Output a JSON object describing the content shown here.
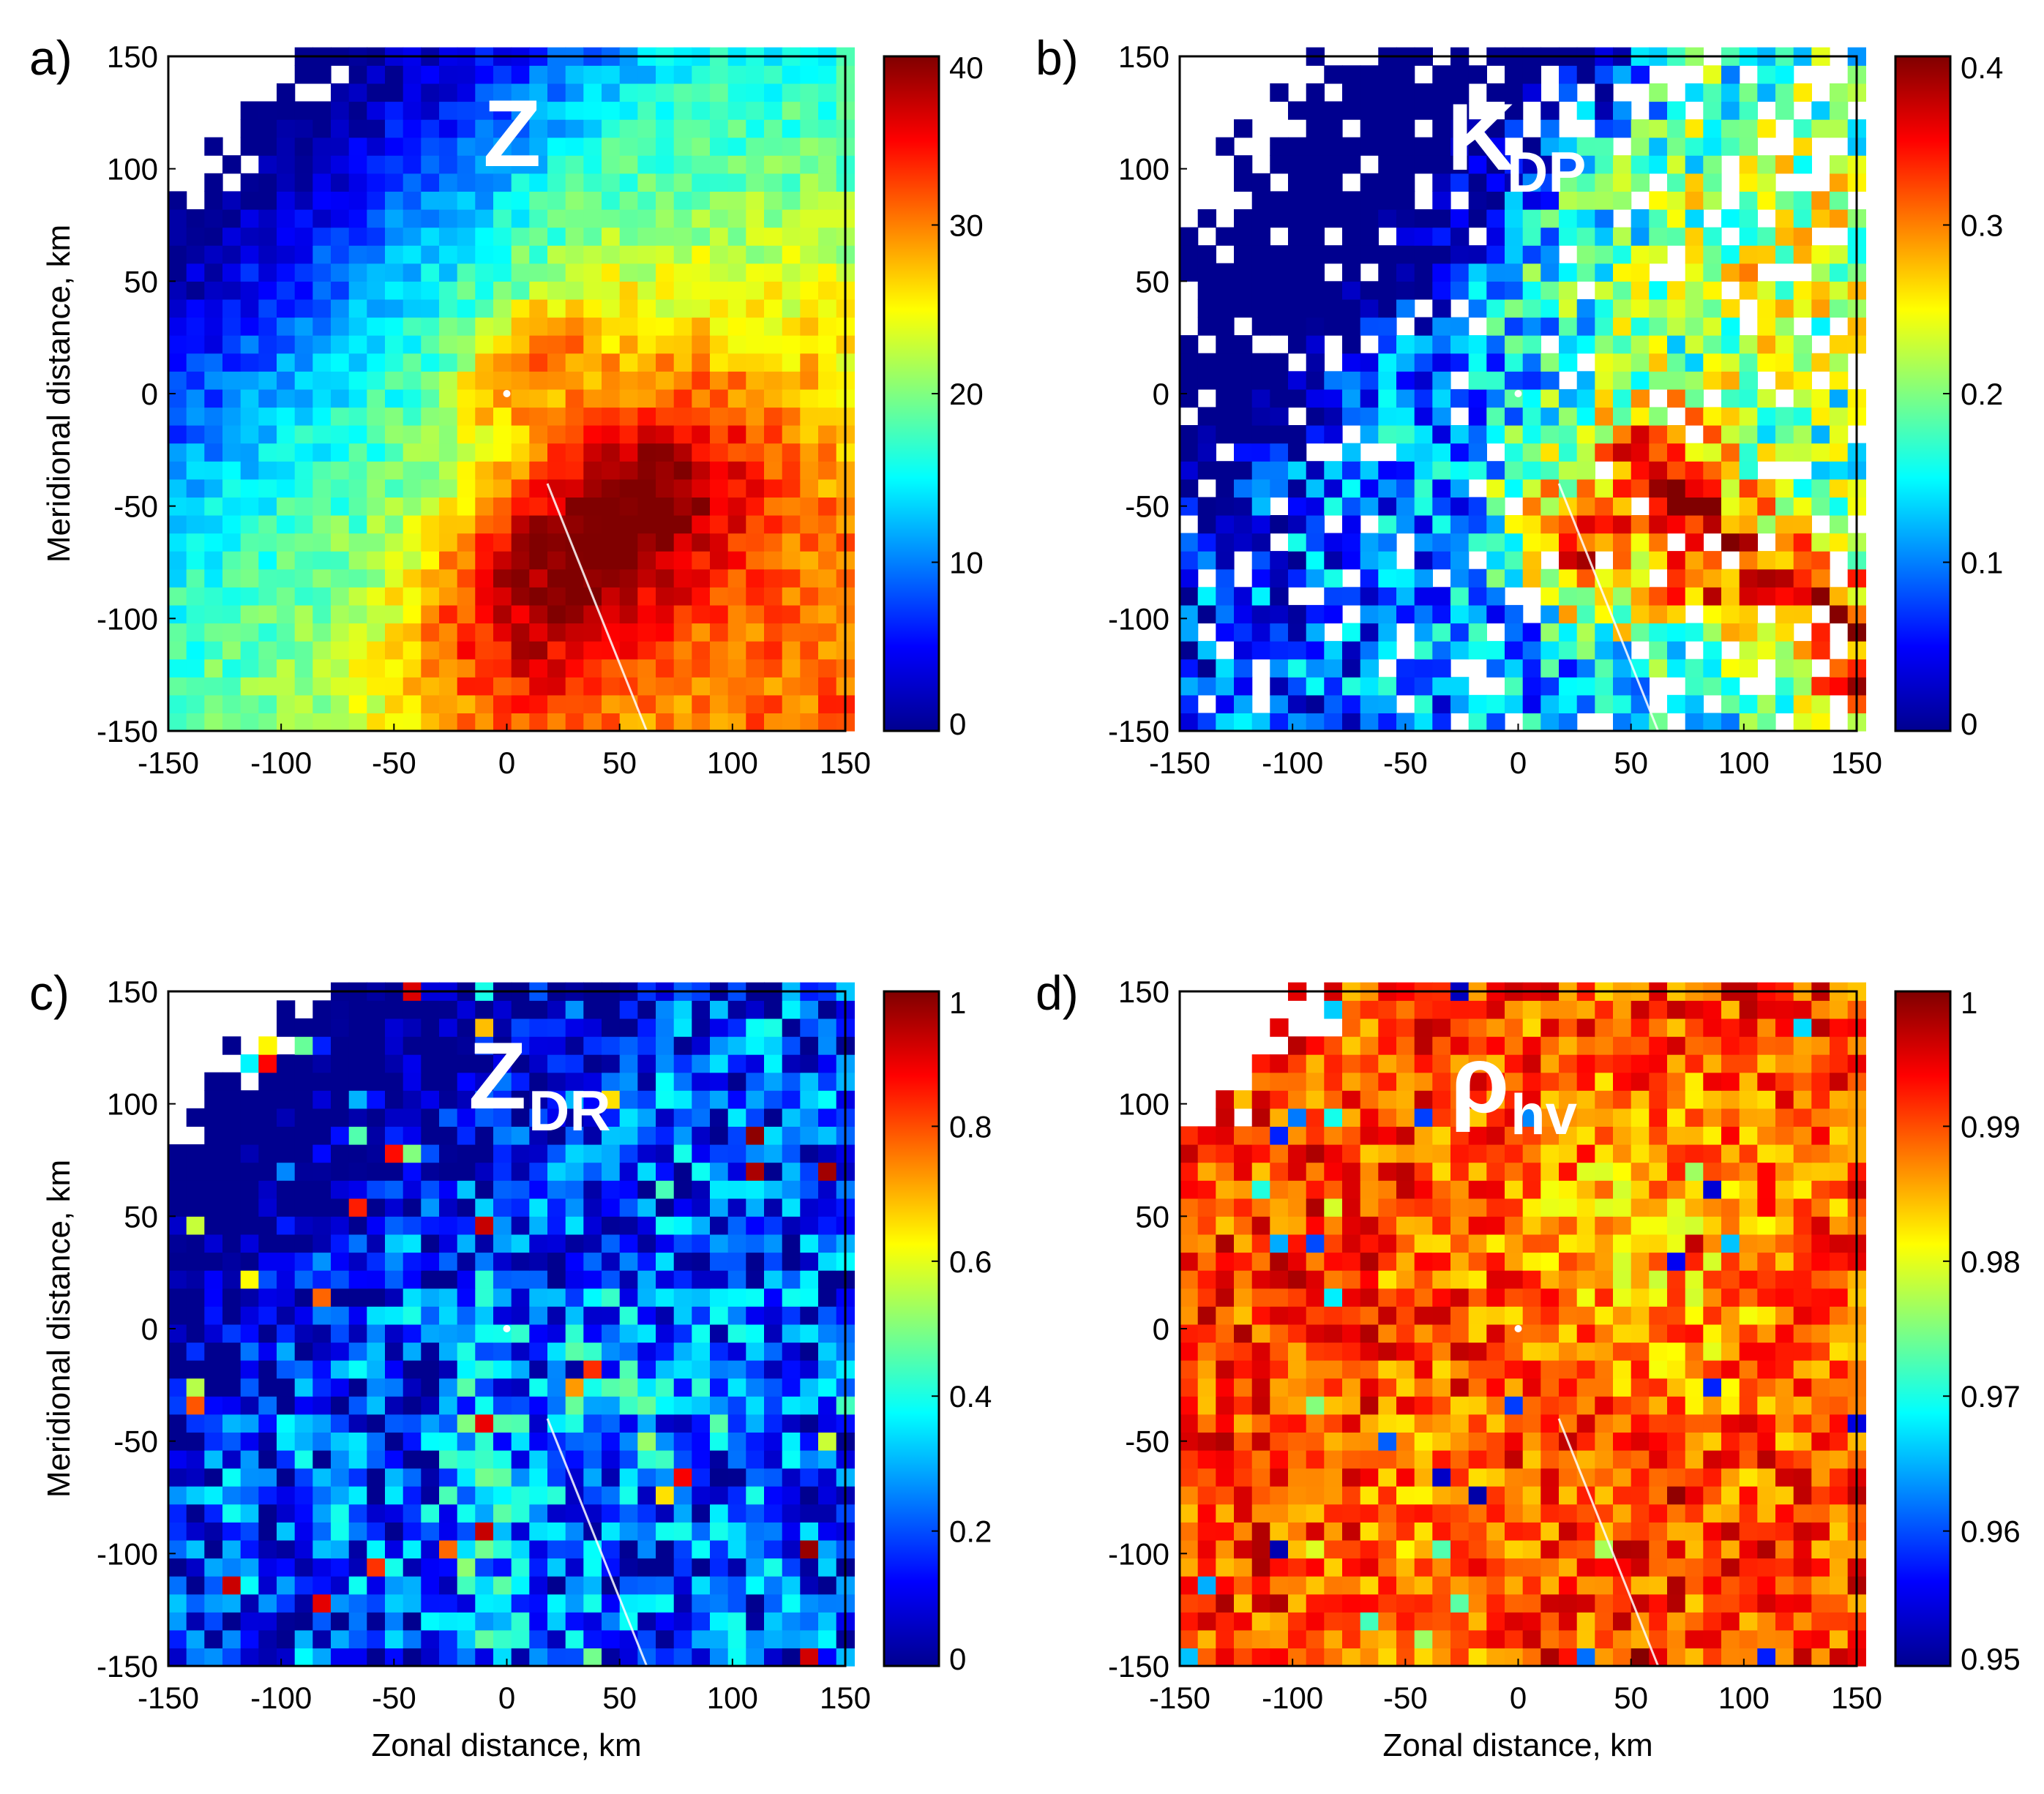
{
  "figure": {
    "colormap": [
      "#00008f",
      "#0000ff",
      "#0080ff",
      "#00ffff",
      "#80ff80",
      "#ffff00",
      "#ff8000",
      "#ff0000",
      "#800000"
    ],
    "axis_label_color": "#000000",
    "panel_title_color": "#ffffff"
  },
  "chart_data": [
    {
      "type": "heatmap",
      "panel_label": "a)",
      "variable": "Z",
      "subscript": "",
      "xlabel": "",
      "ylabel": "Meridional distance, km",
      "xlim": [
        -150,
        150
      ],
      "ylim": [
        -150,
        150
      ],
      "x_ticks": [
        "-150",
        "-100",
        "-50",
        "0",
        "50",
        "100",
        "150"
      ],
      "y_ticks": [
        "150",
        "100",
        "50",
        "0",
        "-50",
        "-100",
        "-150"
      ],
      "colorbar": {
        "min": 0,
        "max": 40,
        "ticks": [
          "0",
          "10",
          "20",
          "30",
          "40"
        ]
      },
      "field": {
        "base": 0.44,
        "noise": 0.07,
        "blobs": [
          {
            "x": 45,
            "y": -55,
            "sx": 45,
            "sy": 30,
            "angle": 35,
            "amp": 0.35
          },
          {
            "x": 10,
            "y": 15,
            "sx": 28,
            "sy": 14,
            "angle": 40,
            "amp": 0.26
          },
          {
            "x": 80,
            "y": -20,
            "sx": 60,
            "sy": 90,
            "angle": 20,
            "amp": 0.18
          },
          {
            "x": 0,
            "y": -110,
            "sx": 40,
            "sy": 40,
            "angle": 0,
            "amp": 0.22
          }
        ],
        "gradient": {
          "gx": 0.0009,
          "gy": -0.0011
        },
        "far_edge": {
          "r": 175,
          "fade": 0.32
        }
      }
    },
    {
      "type": "heatmap",
      "panel_label": "b)",
      "variable": "K",
      "subscript": "DP",
      "xlabel": "",
      "ylabel": "",
      "xlim": [
        -150,
        150
      ],
      "ylim": [
        -150,
        150
      ],
      "x_ticks": [
        "-150",
        "-100",
        "-50",
        "0",
        "50",
        "100",
        "150"
      ],
      "y_ticks": [
        "150",
        "100",
        "50",
        "0",
        "-50",
        "-100",
        "-150"
      ],
      "colorbar": {
        "min": 0,
        "max": 0.4,
        "ticks": [
          "0",
          "0.1",
          "0.2",
          "0.3",
          "0.4"
        ]
      },
      "field": {
        "base": 0.28,
        "noise": 0.2,
        "blobs": [
          {
            "x": 70,
            "y": -55,
            "sx": 22,
            "sy": 40,
            "angle": 30,
            "amp": 0.6
          },
          {
            "x": 20,
            "y": -70,
            "sx": 14,
            "sy": 28,
            "angle": 30,
            "amp": 0.48
          },
          {
            "x": 140,
            "y": -110,
            "sx": 18,
            "sy": 40,
            "angle": 20,
            "amp": 0.5
          },
          {
            "x": 100,
            "y": 60,
            "sx": 60,
            "sy": 60,
            "angle": 0,
            "amp": 0.2
          }
        ],
        "gradient": {
          "gx": 0.0008,
          "gy": 0.0
        },
        "far_edge": {
          "r": 160,
          "fade": 1.0
        },
        "holes": 0.22
      }
    },
    {
      "type": "heatmap",
      "panel_label": "c)",
      "variable": "Z",
      "subscript": "DR",
      "xlabel": "Zonal distance, km",
      "ylabel": "Meridional distance, km",
      "xlim": [
        -150,
        150
      ],
      "ylim": [
        -150,
        150
      ],
      "x_ticks": [
        "-150",
        "-100",
        "-50",
        "0",
        "50",
        "100",
        "150"
      ],
      "y_ticks": [
        "150",
        "100",
        "50",
        "0",
        "-50",
        "-100",
        "-150"
      ],
      "colorbar": {
        "min": 0,
        "max": 1,
        "ticks": [
          "0",
          "0.2",
          "0.4",
          "0.6",
          "0.8",
          "1"
        ]
      },
      "field": {
        "base": 0.18,
        "noise": 0.22,
        "blobs": [
          {
            "x": -10,
            "y": -90,
            "sx": 12,
            "sy": 50,
            "angle": 0,
            "amp": 0.18
          },
          {
            "x": 60,
            "y": -30,
            "sx": 40,
            "sy": 30,
            "angle": 0,
            "amp": 0.1
          }
        ],
        "gradient": {
          "gx": 0.0,
          "gy": 0.0
        },
        "far_edge": {
          "r": 175,
          "fade": 0.5
        },
        "speckle": 0.06
      }
    },
    {
      "type": "heatmap",
      "panel_label": "d)",
      "variable": "ρ",
      "subscript": "hv",
      "xlabel": "Zonal distance, km",
      "ylabel": "",
      "xlim": [
        -150,
        150
      ],
      "ylim": [
        -150,
        150
      ],
      "x_ticks": [
        "-150",
        "-100",
        "-50",
        "0",
        "50",
        "100",
        "150"
      ],
      "y_ticks": [
        "150",
        "100",
        "50",
        "0",
        "-50",
        "-100",
        "-150"
      ],
      "colorbar": {
        "min": 0.95,
        "max": 1,
        "ticks": [
          "0.95",
          "0.96",
          "0.97",
          "0.98",
          "0.99",
          "1"
        ]
      },
      "field": {
        "base": 0.82,
        "noise": 0.14,
        "blobs": [
          {
            "x": 60,
            "y": 40,
            "sx": 50,
            "sy": 60,
            "angle": 30,
            "amp": -0.12
          },
          {
            "x": -40,
            "y": -100,
            "sx": 20,
            "sy": 40,
            "angle": 0,
            "amp": -0.1
          }
        ],
        "gradient": {
          "gx": 0.0,
          "gy": 0.0
        },
        "far_edge": {
          "r": 175,
          "fade": 0.0
        },
        "speckle": 0.04
      }
    }
  ]
}
